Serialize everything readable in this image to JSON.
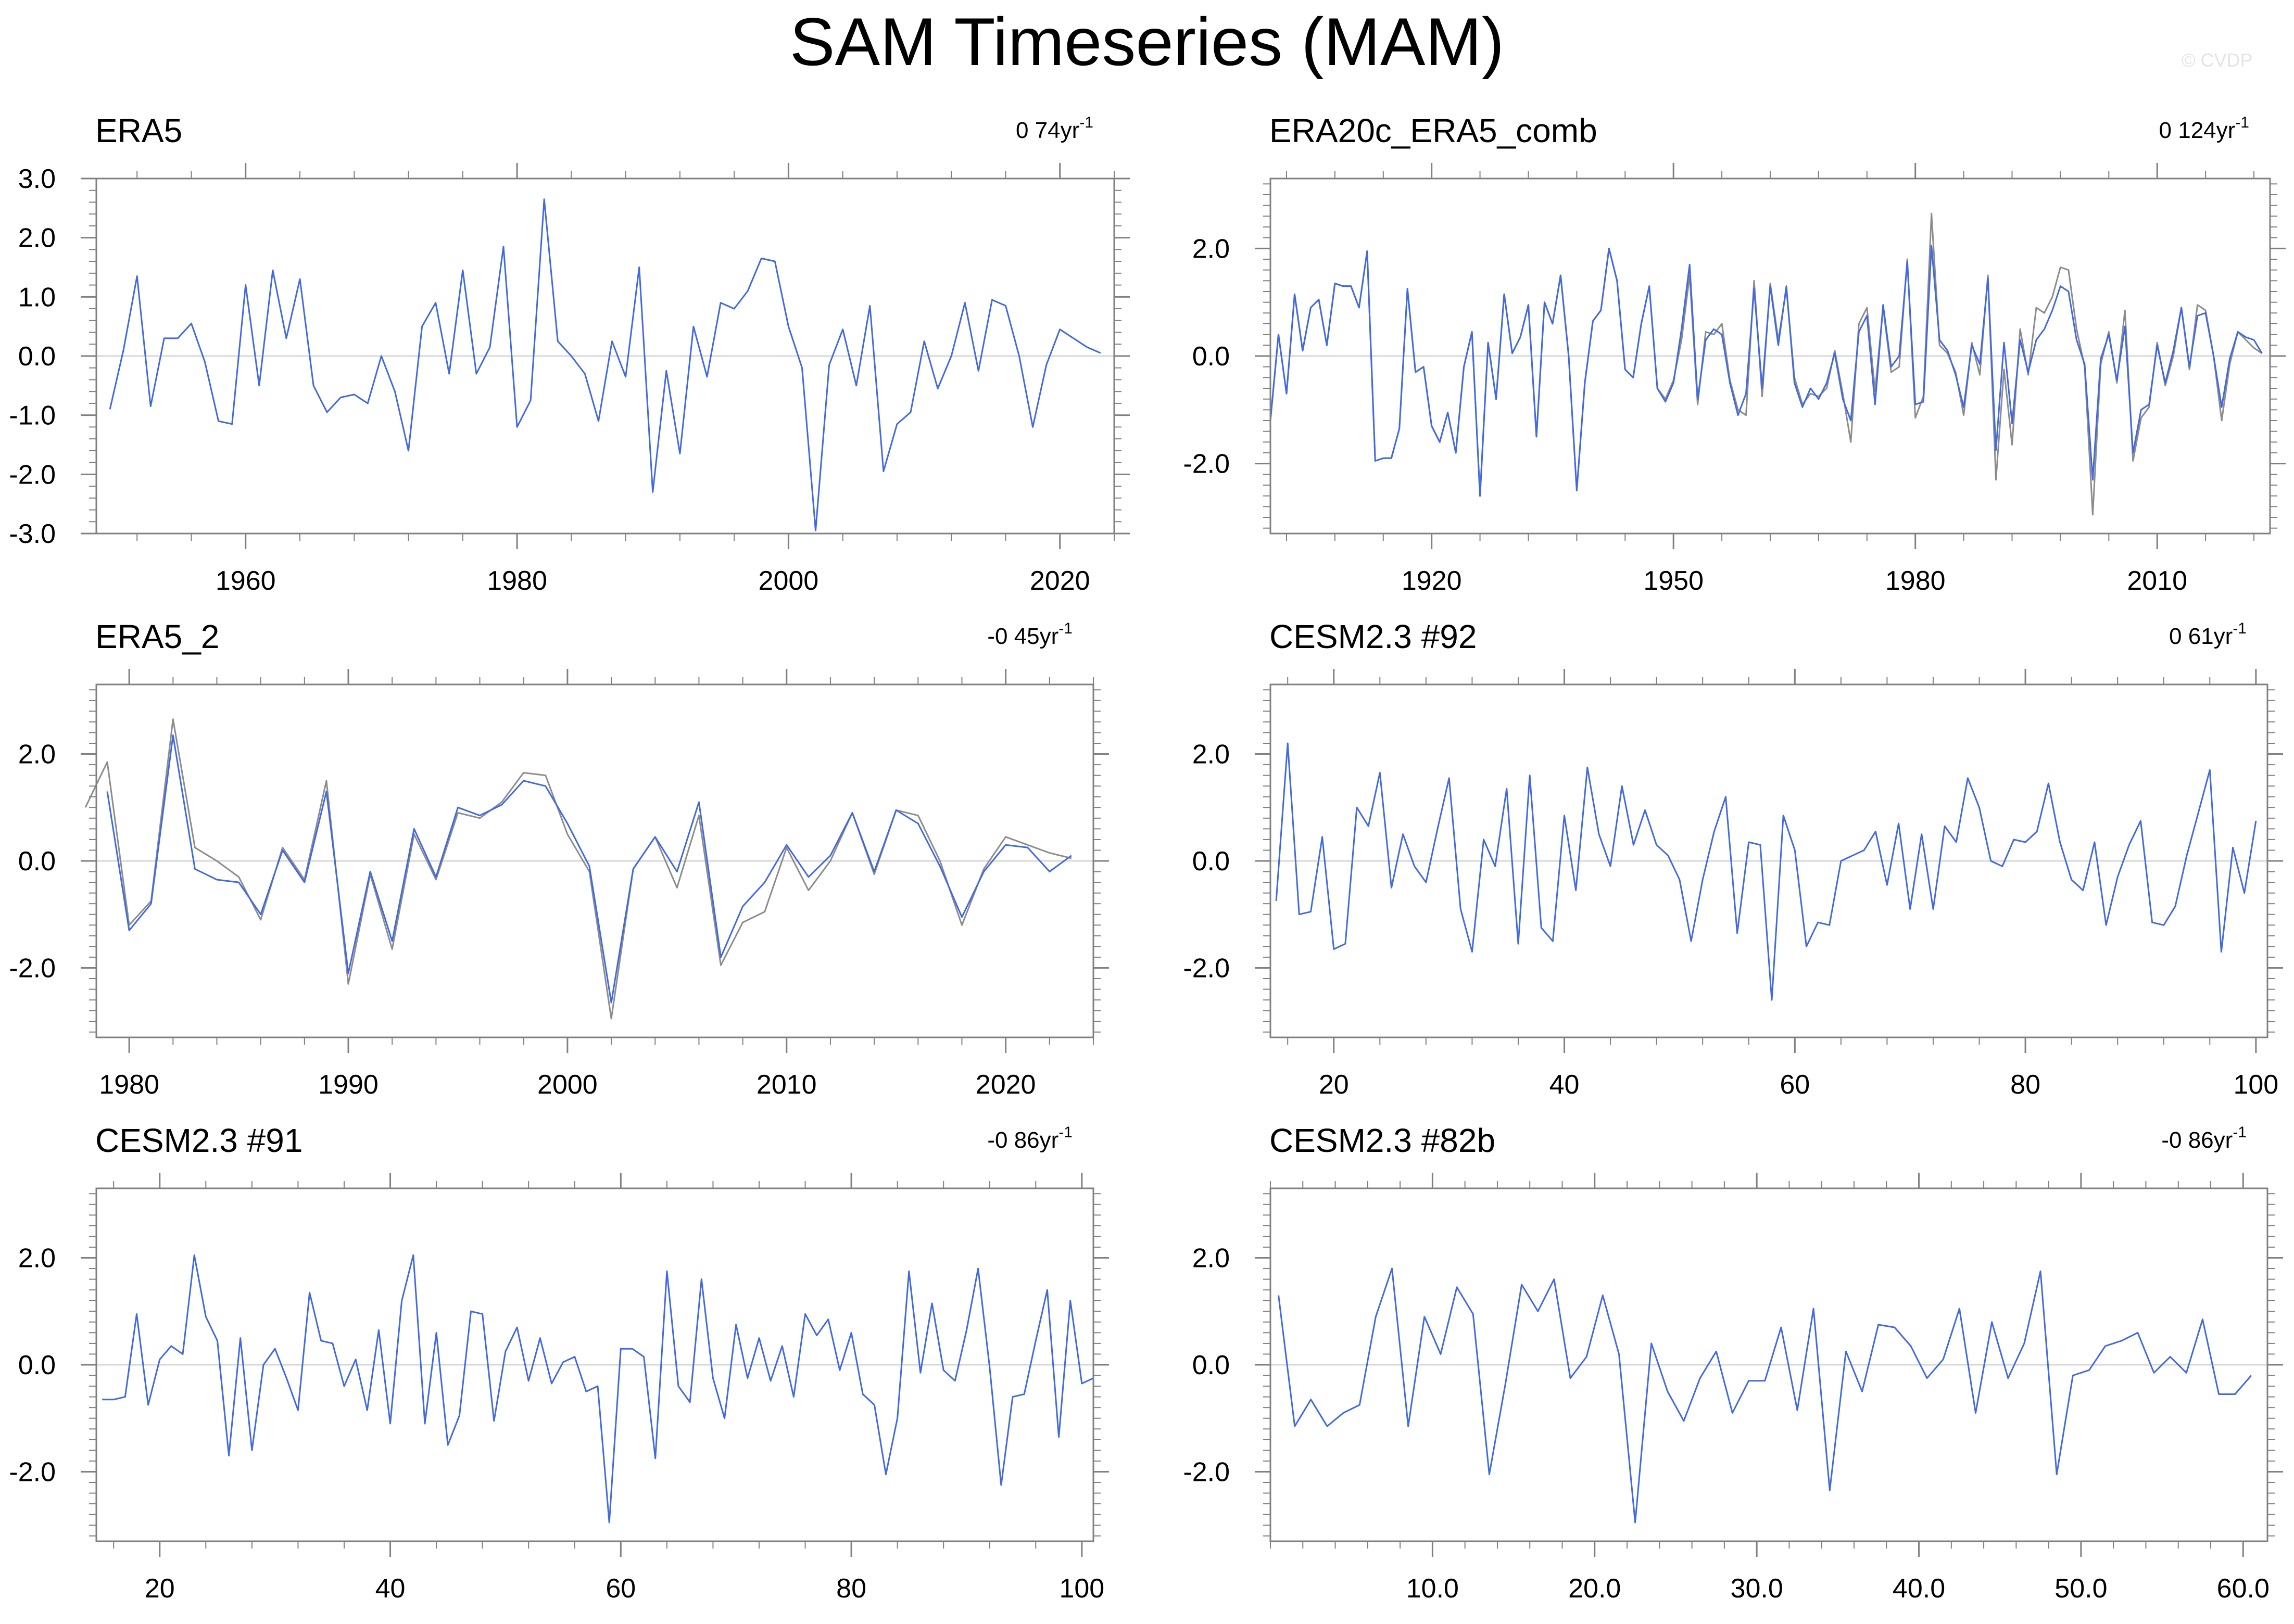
{
  "title": "SAM Timeseries (MAM)",
  "watermark": "© CVDP",
  "colors": {
    "series_main": "#4169e1",
    "series_ref": "#8c8c8c",
    "series_ref2": "#c06060",
    "axis": "#808080",
    "zero_line": "#d8d8d8"
  },
  "chart_data": [
    {
      "type": "line",
      "title": "ERA5",
      "trend": "0 74yr",
      "trend_unit_sup": "-1",
      "xlim": [
        1949,
        2024
      ],
      "ylim": [
        -3.0,
        3.0
      ],
      "xticks": [
        1960,
        1980,
        2000,
        2020
      ],
      "xtick_labels": [
        "1960",
        "1980",
        "2000",
        "2020"
      ],
      "yticks": [
        -3,
        -2,
        -1,
        0,
        1,
        2,
        3
      ],
      "ytick_labels": [
        "-3.0",
        "-2.0",
        "-1.0",
        "0.0",
        "1.0",
        "2.0",
        "3.0"
      ],
      "series": [
        {
          "x_start": 1950,
          "values": [
            -0.9,
            0.1,
            1.35,
            -0.85,
            0.3,
            0.3,
            0.55,
            -0.1,
            -1.1,
            -1.15,
            1.2,
            -0.5,
            1.45,
            0.3,
            1.3,
            -0.5,
            -0.95,
            -0.7,
            -0.65,
            -0.8,
            0.0,
            -0.6,
            -1.6,
            0.5,
            0.9,
            -0.3,
            1.45,
            -0.3,
            0.15,
            1.85,
            -1.2,
            -0.75,
            2.65,
            0.25,
            0.0,
            -0.3,
            -1.1,
            0.25,
            -0.35,
            1.5,
            -2.3,
            -0.25,
            -1.65,
            0.5,
            -0.35,
            0.9,
            0.8,
            1.1,
            1.65,
            1.6,
            0.5,
            -0.2,
            -2.95,
            -0.15,
            0.45,
            -0.5,
            0.85,
            -1.95,
            -1.15,
            -0.95,
            0.25,
            -0.55,
            0.0,
            0.9,
            -0.25,
            0.95,
            0.85,
            0.0,
            -1.2,
            -0.15,
            0.45,
            0.3,
            0.15,
            0.05
          ]
        }
      ]
    },
    {
      "type": "line",
      "title": "ERA20c_ERA5_comb",
      "trend": "0 124yr",
      "trend_unit_sup": "-1",
      "xlim": [
        1900,
        2024
      ],
      "ylim": [
        -3.3,
        3.3
      ],
      "xticks": [
        1920,
        1950,
        1980,
        2010
      ],
      "xtick_labels": [
        "1920",
        "1950",
        "1980",
        "2010"
      ],
      "yticks": [
        -2,
        0,
        2
      ],
      "ytick_labels": [
        "-2.0",
        "0.0",
        "2.0"
      ],
      "series": [
        {
          "x_start": 1900,
          "values": [
            -1.2,
            0.4,
            -0.7,
            1.15,
            0.1,
            0.9,
            1.05,
            0.2,
            1.35,
            1.3,
            1.3,
            0.9,
            1.95,
            -1.95,
            -1.9,
            -1.9,
            -1.35,
            1.25,
            -0.3,
            -0.2,
            -1.3,
            -1.6,
            -1.05,
            -1.8,
            -0.2,
            0.45,
            -2.6,
            0.25,
            -0.8,
            1.15,
            0.05,
            0.35,
            0.95,
            -1.5,
            1.0,
            0.6,
            1.5,
            0.0,
            -2.5,
            -0.5,
            0.65,
            0.85,
            2.0,
            1.4,
            -0.25,
            -0.4,
            0.6,
            1.3,
            -0.6,
            -0.85,
            -0.5,
            0.5,
            1.7,
            -0.8,
            0.3,
            0.5,
            0.4,
            -0.5,
            -1.1,
            -0.7,
            1.25,
            -0.6,
            1.3,
            0.2,
            1.3,
            -0.5,
            -0.95,
            -0.6,
            -0.8,
            -0.5,
            0.05,
            -0.8,
            -1.2,
            0.45,
            0.75,
            -0.9,
            0.95,
            -0.2,
            0.0,
            1.75,
            -0.9,
            -0.85,
            2.05,
            0.3,
            0.1,
            -0.35,
            -0.95,
            0.2,
            -0.15,
            1.45,
            -1.75,
            0.25,
            -1.25,
            0.3,
            -0.3,
            0.3,
            0.5,
            0.85,
            1.3,
            1.2,
            0.3,
            -0.15,
            -2.3,
            -0.05,
            0.4,
            -0.45,
            0.55,
            -1.8,
            -1.0,
            -0.9,
            0.2,
            -0.5,
            0.1,
            0.9,
            -0.2,
            0.75,
            0.8,
            0.0,
            -0.95,
            -0.05,
            0.45,
            0.35,
            0.3,
            0.05
          ]
        },
        {
          "x_start": 1900,
          "values": [
            -1.2,
            0.4,
            -0.7,
            1.15,
            0.1,
            0.9,
            1.05,
            0.2,
            1.35,
            1.3,
            1.3,
            0.9,
            1.95,
            -1.95,
            -1.9,
            -1.9,
            -1.35,
            1.25,
            -0.3,
            -0.2,
            -1.3,
            -1.6,
            -1.05,
            -1.8,
            -0.2,
            0.45,
            -2.6,
            0.25,
            -0.8,
            1.15,
            0.05,
            0.35,
            0.95,
            -1.5,
            1.0,
            0.6,
            1.5,
            0.0,
            -2.5,
            -0.5,
            0.65,
            0.85,
            2.0,
            1.4,
            -0.25,
            -0.4,
            0.6,
            1.3,
            -0.6,
            -0.8,
            -0.45,
            0.3,
            1.5,
            -0.9,
            0.45,
            0.4,
            0.6,
            -0.45,
            -1.0,
            -1.1,
            1.4,
            -0.75,
            1.35,
            0.3,
            1.25,
            -0.4,
            -0.9,
            -0.7,
            -0.75,
            -0.6,
            0.1,
            -0.7,
            -1.6,
            0.6,
            0.9,
            -0.65,
            0.9,
            -0.3,
            -0.2,
            1.8,
            -1.15,
            -0.75,
            2.65,
            0.2,
            0.05,
            -0.3,
            -1.1,
            0.25,
            -0.35,
            1.5,
            -2.3,
            -0.25,
            -1.65,
            0.5,
            -0.35,
            0.9,
            0.8,
            1.1,
            1.65,
            1.6,
            0.5,
            -0.2,
            -2.95,
            -0.15,
            0.45,
            -0.5,
            0.85,
            -1.95,
            -1.15,
            -0.95,
            0.25,
            -0.55,
            0.0,
            0.9,
            -0.25,
            0.95,
            0.85,
            0.0,
            -1.2,
            -0.15,
            0.45,
            0.3,
            0.15,
            0.05
          ]
        }
      ]
    },
    {
      "type": "line",
      "title": "ERA5_2",
      "trend": "-0 45yr",
      "trend_unit_sup": "-1",
      "xlim": [
        1978.5,
        2024
      ],
      "ylim": [
        -3.3,
        3.3
      ],
      "xticks": [
        1980,
        1990,
        2000,
        2010,
        2020
      ],
      "xtick_labels": [
        "1980",
        "1990",
        "2000",
        "2010",
        "2020"
      ],
      "yticks": [
        -2,
        0,
        2
      ],
      "ytick_labels": [
        "-2.0",
        "0.0",
        "2.0"
      ],
      "series": [
        {
          "x_start": 1979,
          "values": [
            1.3,
            -1.3,
            -0.8,
            2.35,
            -0.15,
            -0.35,
            -0.4,
            -1.0,
            0.2,
            -0.4,
            1.3,
            -2.1,
            -0.2,
            -1.5,
            0.6,
            -0.3,
            1.0,
            0.85,
            1.05,
            1.5,
            1.4,
            0.7,
            -0.1,
            -2.65,
            -0.15,
            0.45,
            -0.2,
            1.1,
            -1.8,
            -0.85,
            -0.4,
            0.3,
            -0.3,
            0.1,
            0.9,
            -0.2,
            0.95,
            0.7,
            -0.1,
            -1.05,
            -0.2,
            0.3,
            0.25,
            -0.2,
            0.1
          ]
        },
        {
          "x_start": 1978,
          "values": [
            1.0,
            1.85,
            -1.2,
            -0.75,
            2.65,
            0.25,
            0.0,
            -0.3,
            -1.1,
            0.25,
            -0.35,
            1.5,
            -2.3,
            -0.25,
            -1.65,
            0.5,
            -0.35,
            0.9,
            0.8,
            1.1,
            1.65,
            1.6,
            0.5,
            -0.2,
            -2.95,
            -0.15,
            0.45,
            -0.5,
            0.85,
            -1.95,
            -1.15,
            -0.95,
            0.25,
            -0.55,
            0.0,
            0.9,
            -0.25,
            0.95,
            0.85,
            0.0,
            -1.2,
            -0.15,
            0.45,
            0.3,
            0.15,
            0.05
          ]
        }
      ]
    },
    {
      "type": "line",
      "title": "CESM2.3 #92",
      "trend": "0 61yr",
      "trend_unit_sup": "-1",
      "xlim": [
        14.5,
        101
      ],
      "ylim": [
        -3.3,
        3.3
      ],
      "xticks": [
        20,
        40,
        60,
        80,
        100
      ],
      "xtick_labels": [
        "20",
        "40",
        "60",
        "80",
        "100"
      ],
      "yticks": [
        -2,
        0,
        2
      ],
      "ytick_labels": [
        "-2.0",
        "0.0",
        "2.0"
      ],
      "series": [
        {
          "x_start": 15,
          "values": [
            -0.75,
            2.2,
            -1.0,
            -0.95,
            0.45,
            -1.65,
            -1.55,
            1.0,
            0.65,
            1.65,
            -0.5,
            0.5,
            -0.1,
            -0.4,
            0.6,
            1.55,
            -0.9,
            -1.7,
            0.4,
            -0.1,
            1.35,
            -1.55,
            1.6,
            -1.25,
            -1.5,
            0.85,
            -0.55,
            1.75,
            0.5,
            -0.1,
            1.4,
            0.3,
            0.95,
            0.3,
            0.1,
            -0.35,
            -1.5,
            -0.35,
            0.55,
            1.2,
            -1.35,
            0.35,
            0.3,
            -2.6,
            0.85,
            0.2,
            -1.6,
            -1.15,
            -1.2,
            0.0,
            0.1,
            0.2,
            0.55,
            -0.45,
            0.7,
            -0.9,
            0.5,
            -0.9,
            0.65,
            0.35,
            1.55,
            1.0,
            0.0,
            -0.1,
            0.4,
            0.35,
            0.55,
            1.45,
            0.35,
            -0.35,
            -0.55,
            0.35,
            -1.2,
            -0.3,
            0.3,
            0.75,
            -1.15,
            -1.2,
            -0.85,
            0.1,
            0.9,
            1.7,
            -1.7,
            0.25,
            -0.6,
            0.75
          ]
        }
      ]
    },
    {
      "type": "line",
      "title": "CESM2.3 #91",
      "trend": "-0 86yr",
      "trend_unit_sup": "-1",
      "xlim": [
        14.5,
        101
      ],
      "ylim": [
        -3.3,
        3.3
      ],
      "xticks": [
        20,
        40,
        60,
        80,
        100
      ],
      "xtick_labels": [
        "20",
        "40",
        "60",
        "80",
        "100"
      ],
      "yticks": [
        -2,
        0,
        2
      ],
      "ytick_labels": [
        "-2.0",
        "0.0",
        "2.0"
      ],
      "series": [
        {
          "x_start": 15,
          "values": [
            -0.65,
            -0.65,
            -0.6,
            0.95,
            -0.75,
            0.1,
            0.35,
            0.2,
            2.05,
            0.9,
            0.45,
            -1.7,
            0.5,
            -1.6,
            0.0,
            0.3,
            -0.25,
            -0.85,
            1.35,
            0.45,
            0.4,
            -0.4,
            0.1,
            -0.85,
            0.65,
            -1.1,
            1.2,
            2.05,
            -1.1,
            0.6,
            -1.5,
            -0.95,
            1.0,
            0.95,
            -1.05,
            0.25,
            0.7,
            -0.3,
            0.5,
            -0.35,
            0.05,
            0.15,
            -0.5,
            -0.4,
            -2.95,
            0.3,
            0.3,
            0.15,
            -1.75,
            1.75,
            -0.4,
            -0.7,
            1.6,
            -0.25,
            -1.0,
            0.75,
            -0.25,
            0.5,
            -0.3,
            0.35,
            -0.6,
            0.95,
            0.55,
            0.85,
            -0.1,
            0.6,
            -0.55,
            -0.75,
            -2.05,
            -1.0,
            1.75,
            -0.15,
            1.15,
            -0.1,
            -0.3,
            0.65,
            1.8,
            -0.05,
            -2.25,
            -0.6,
            -0.55,
            0.45,
            1.4,
            -1.35,
            1.2,
            -0.35,
            -0.25
          ]
        }
      ]
    },
    {
      "type": "line",
      "title": "CESM2.3 #82b",
      "trend": "-0 86yr",
      "trend_unit_sup": "-1",
      "xlim": [
        0,
        61.5
      ],
      "ylim": [
        -3.3,
        3.3
      ],
      "xticks": [
        10,
        20,
        30,
        40,
        50,
        60
      ],
      "xtick_labels": [
        "10.0",
        "20.0",
        "30.0",
        "40.0",
        "50.0",
        "60.0"
      ],
      "yticks": [
        -2,
        0,
        2
      ],
      "ytick_labels": [
        "-2.0",
        "0.0",
        "2.0"
      ],
      "series": [
        {
          "x_start": 0.5,
          "values": [
            1.3,
            -1.15,
            -0.65,
            -1.15,
            -0.9,
            -0.75,
            0.9,
            1.8,
            -1.15,
            0.9,
            0.2,
            1.45,
            0.95,
            -2.05,
            -0.35,
            1.5,
            1.0,
            1.6,
            -0.25,
            0.15,
            1.3,
            0.2,
            -2.95,
            0.4,
            -0.5,
            -1.05,
            -0.25,
            0.25,
            -0.9,
            -0.3,
            -0.3,
            0.7,
            -0.85,
            1.05,
            -2.35,
            0.25,
            -0.5,
            0.75,
            0.7,
            0.35,
            -0.25,
            0.1,
            1.05,
            -0.9,
            0.8,
            -0.25,
            0.4,
            1.75,
            -2.05,
            -0.2,
            -0.1,
            0.35,
            0.45,
            0.6,
            -0.15,
            0.15,
            -0.15,
            0.85,
            -0.55,
            -0.55,
            -0.2
          ]
        }
      ]
    }
  ]
}
